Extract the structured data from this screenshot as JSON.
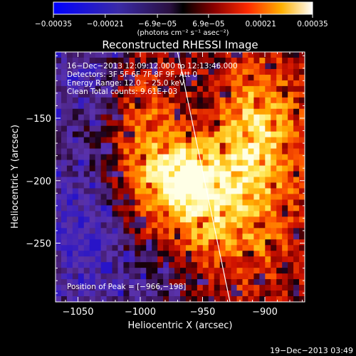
{
  "chart_data": {
    "type": "heatmap",
    "title": "Reconstructed RHESSI Image",
    "xlabel": "Heliocentric X (arcsec)",
    "ylabel": "Heliocentric Y (arcsec)",
    "xlim": [
      -1068,
      -868
    ],
    "ylim": [
      -297,
      -97
    ],
    "xticks": [
      -1050,
      -1000,
      -950,
      -900
    ],
    "xtick_labels": [
      "−1050",
      "−1000",
      "−950",
      "−900"
    ],
    "yticks": [
      -150,
      -200,
      -250
    ],
    "ytick_labels": [
      "−150",
      "−200",
      "−250"
    ],
    "colorbar": {
      "range": [
        -0.00035,
        0.00035
      ],
      "ticks": [
        -0.00035,
        -0.00021,
        -6.9e-05,
        6.9e-05,
        0.00021,
        0.00035
      ],
      "tick_labels": [
        "−0.00035",
        "−0.00021",
        "−6.9e−05",
        "6.9e−05",
        "0.00021",
        "0.00035"
      ],
      "units_label": "(photons cm⁻² s⁻¹ asec⁻²)"
    },
    "annotations": {
      "time_range": "16−Dec−2013 12:09:12.000 to 12:13:46.000",
      "detectors": "Detectors: 3F 5F 6F 7F 8F 9F, Att 0",
      "energy_range": "Energy Range: 12.0 − 25.0 keV",
      "clean": "Clean     Total counts: 9.61E+03",
      "peak": "Position of Peak = [−966,−198]"
    },
    "peak_position": [
      -966,
      -198
    ],
    "limb_line": [
      [
        -970,
        -97
      ],
      [
        -928,
        -297
      ]
    ],
    "grid": false
  },
  "footer": {
    "timestamp": "19−Dec−2013 03:49"
  }
}
